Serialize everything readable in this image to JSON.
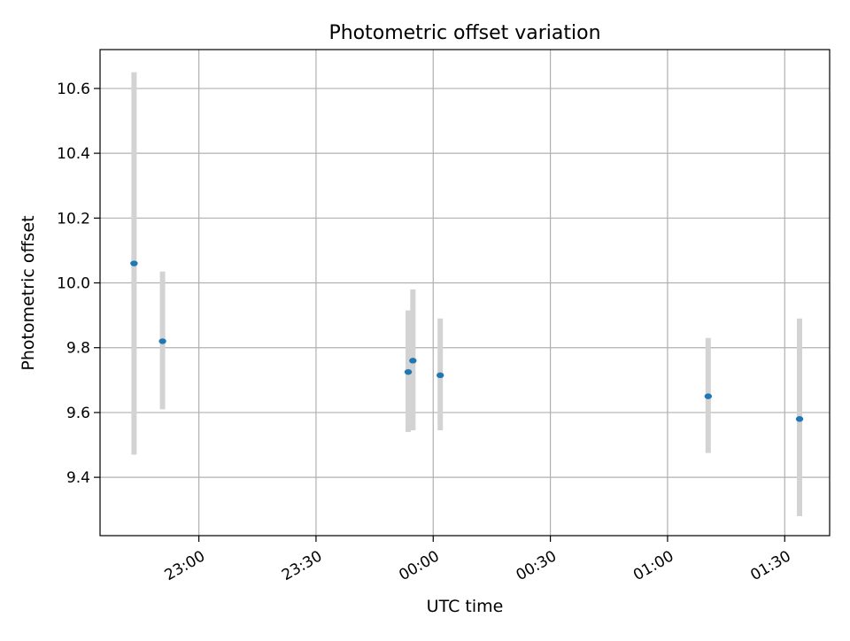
{
  "chart_data": {
    "type": "scatter",
    "title": "Photometric offset variation",
    "xlabel": "UTC time",
    "ylabel": "Photometric offset",
    "x_axis": {
      "scale": "time",
      "range_minutes": [
        -25.3,
        161.5
      ],
      "ticks": [
        {
          "minutes": 0,
          "label": "23:00"
        },
        {
          "minutes": 30,
          "label": "23:30"
        },
        {
          "minutes": 60,
          "label": "00:00"
        },
        {
          "minutes": 90,
          "label": "00:30"
        },
        {
          "minutes": 120,
          "label": "01:00"
        },
        {
          "minutes": 150,
          "label": "01:30"
        }
      ]
    },
    "ylim": [
      9.22,
      10.72
    ],
    "y_ticks": [
      "9.4",
      "9.6",
      "9.8",
      "10.0",
      "10.2",
      "10.4",
      "10.6"
    ],
    "grid": true,
    "legend": "none",
    "colors": {
      "point": "#1f77b4",
      "errorbar": "#d3d3d3",
      "grid": "#b0b0b0"
    },
    "series": [
      {
        "points": [
          {
            "minutes": -16.6,
            "y": 10.06,
            "err_low": 9.47,
            "err_high": 10.65
          },
          {
            "minutes": -9.3,
            "y": 9.82,
            "err_low": 9.61,
            "err_high": 10.035
          },
          {
            "minutes": 53.6,
            "y": 9.725,
            "err_low": 9.54,
            "err_high": 9.915
          },
          {
            "minutes": 54.8,
            "y": 9.76,
            "err_low": 9.545,
            "err_high": 9.98
          },
          {
            "minutes": 61.8,
            "y": 9.715,
            "err_low": 9.545,
            "err_high": 9.89
          },
          {
            "minutes": 130.4,
            "y": 9.65,
            "err_low": 9.475,
            "err_high": 9.83
          },
          {
            "minutes": 153.8,
            "y": 9.58,
            "err_low": 9.28,
            "err_high": 9.89
          }
        ]
      }
    ]
  }
}
